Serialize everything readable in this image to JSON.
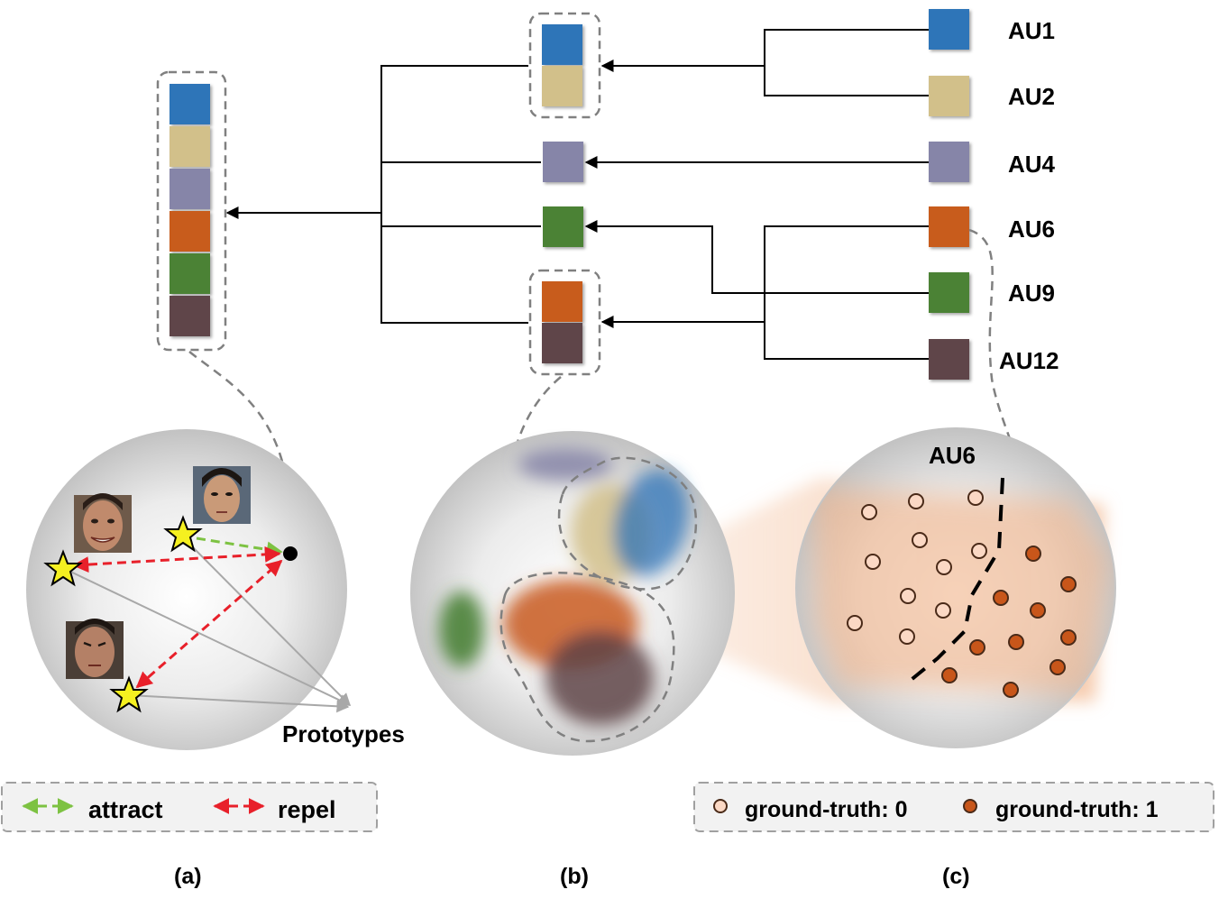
{
  "colors": {
    "AU1": "#2f74b8",
    "AU2": "#d2c08a",
    "AU4": "#8685a8",
    "AU6": "#c85b1c",
    "AU9": "#4b8236",
    "AU12": "#5f4448",
    "attract": "#7dc242",
    "repel": "#e8202a",
    "star": "#f5f020",
    "gt0": "#fbd8c4",
    "gt1": "#c8561a"
  },
  "au_labels": {
    "au1": "AU1",
    "au2": "AU2",
    "au4": "AU4",
    "au6": "AU6",
    "au9": "AU9",
    "au12": "AU12"
  },
  "panel_a": {
    "prototypes_label": "Prototypes"
  },
  "panel_c": {
    "title": "AU6"
  },
  "legend_left": {
    "attract": "attract",
    "repel": "repel"
  },
  "legend_right": {
    "gt0": "ground-truth: 0",
    "gt1": "ground-truth: 1"
  },
  "captions": {
    "a": "(a)",
    "b": "(b)",
    "c": "(c)"
  }
}
